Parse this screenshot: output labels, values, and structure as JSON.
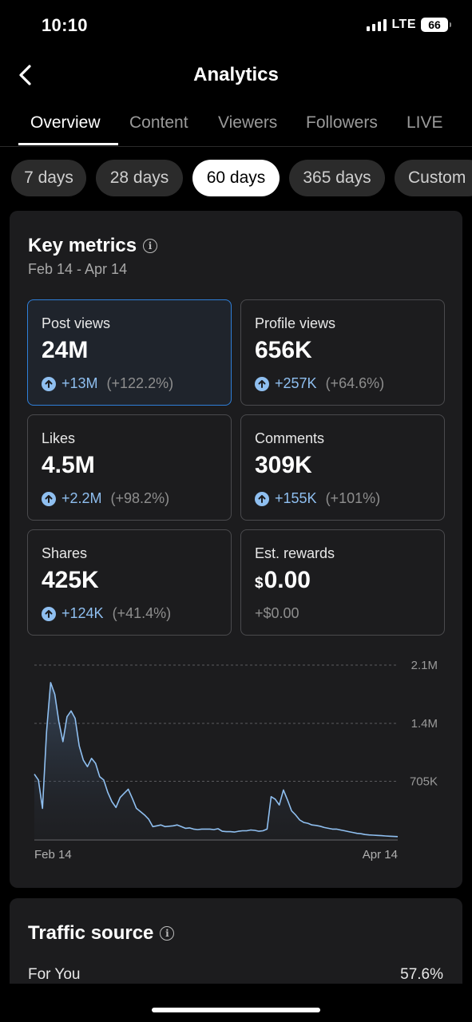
{
  "status": {
    "time": "10:10",
    "network": "LTE",
    "battery": "66"
  },
  "header": {
    "title": "Analytics"
  },
  "tabs": [
    {
      "label": "Overview"
    },
    {
      "label": "Content"
    },
    {
      "label": "Viewers"
    },
    {
      "label": "Followers"
    },
    {
      "label": "LIVE"
    }
  ],
  "periods": [
    {
      "label": "7 days"
    },
    {
      "label": "28 days"
    },
    {
      "label": "60 days"
    },
    {
      "label": "365 days"
    },
    {
      "label": "Custom"
    }
  ],
  "selected_period": "60 days",
  "key_metrics": {
    "title": "Key metrics",
    "date_range": "Feb 14 - Apr 14",
    "items": [
      {
        "label": "Post views",
        "value": "24M",
        "change": "+13M",
        "change_pct": "(+122.2%)",
        "trend": "up",
        "selected": true
      },
      {
        "label": "Profile views",
        "value": "656K",
        "change": "+257K",
        "change_pct": "(+64.6%)",
        "trend": "up"
      },
      {
        "label": "Likes",
        "value": "4.5M",
        "change": "+2.2M",
        "change_pct": "(+98.2%)",
        "trend": "up"
      },
      {
        "label": "Comments",
        "value": "309K",
        "change": "+155K",
        "change_pct": "(+101%)",
        "trend": "up"
      },
      {
        "label": "Shares",
        "value": "425K",
        "change": "+124K",
        "change_pct": "(+41.4%)",
        "trend": "up"
      },
      {
        "label": "Est. rewards",
        "currency": "$",
        "value": "0.00",
        "change": "+$0.00",
        "trend": "none"
      }
    ]
  },
  "chart_data": {
    "type": "area",
    "series": [
      {
        "values": [
          790,
          720,
          380,
          1300,
          1890,
          1750,
          1420,
          1180,
          1480,
          1550,
          1460,
          1130,
          960,
          880,
          980,
          920,
          760,
          720,
          570,
          460,
          390,
          510,
          560,
          610,
          500,
          380,
          340,
          300,
          250,
          160,
          170,
          180,
          160,
          165,
          170,
          180,
          160,
          140,
          145,
          130,
          125,
          130,
          130,
          130,
          125,
          135,
          105,
          100,
          100,
          95,
          105,
          110,
          110,
          120,
          115,
          105,
          110,
          130,
          520,
          490,
          420,
          600,
          480,
          350,
          300,
          240,
          210,
          200,
          180,
          175,
          165,
          150,
          140,
          130,
          130,
          120,
          110,
          100,
          90,
          80,
          75,
          65,
          60,
          58,
          55,
          52,
          48,
          45,
          42,
          40
        ]
      }
    ],
    "x_labels": [
      "Feb 14",
      "Apr 14"
    ],
    "y_ticks": [
      "705K",
      "1.4M",
      "2.1M"
    ],
    "ylim": [
      0,
      2100
    ],
    "grid": true,
    "line_color": "#8fbff0"
  },
  "traffic_source": {
    "title": "Traffic source",
    "rows": [
      {
        "label": "For You",
        "value": "57.6%"
      }
    ]
  }
}
